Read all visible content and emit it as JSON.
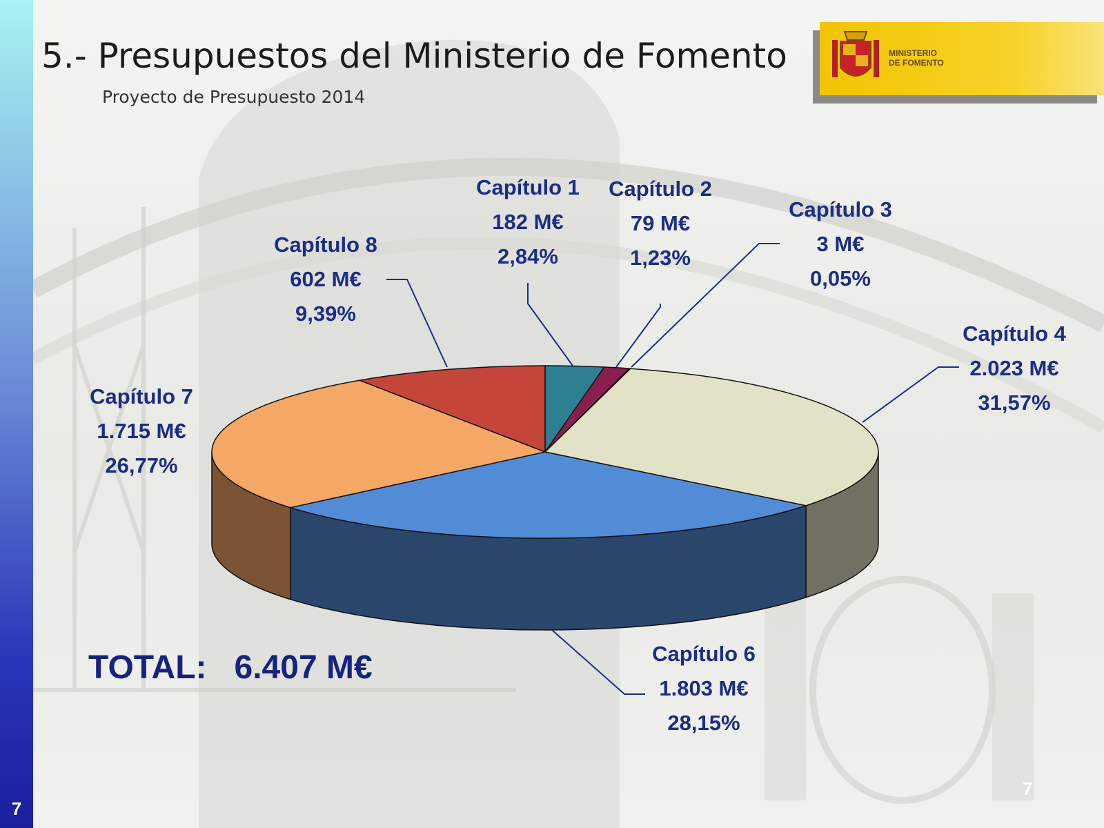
{
  "slide": {
    "title": "5.- Presupuestos del Ministerio de Fomento",
    "subtitle": "Proyecto de Presupuesto 2014",
    "logo_text": "MINISTERIO\nDE FOMENTO",
    "total": "TOTAL:   6.407 M€",
    "side_number": "7",
    "corner_number": "7"
  },
  "colors": {
    "text_accent": "#1a2e86",
    "strip_top": "#a8f2f2",
    "strip_bottom": "#1c1f9c"
  },
  "chart_data": {
    "type": "pie",
    "style": "3d",
    "unit": "M€",
    "start": "12 o'clock, clockwise",
    "slices": [
      {
        "label": "Capítulo 1",
        "value": 182,
        "value_text": "182 M€",
        "percent": "2,84%",
        "color": "#2e7f8f"
      },
      {
        "label": "Capítulo 2",
        "value": 79,
        "value_text": "79 M€",
        "percent": "1,23%",
        "color": "#8a1f4e"
      },
      {
        "label": "Capítulo 3",
        "value": 3,
        "value_text": "3 M€",
        "percent": "0,05%",
        "color": "#4a7a2a"
      },
      {
        "label": "Capítulo 4",
        "value": 2023,
        "value_text": "2.023 M€",
        "percent": "31,57%",
        "color": "#e2e2c6"
      },
      {
        "label": "Capítulo 6",
        "value": 1803,
        "value_text": "1.803 M€",
        "percent": "28,15%",
        "color": "#538cd6"
      },
      {
        "label": "Capítulo 7",
        "value": 1715,
        "value_text": "1.715 M€",
        "percent": "26,77%",
        "color": "#f5a866"
      },
      {
        "label": "Capítulo 8",
        "value": 602,
        "value_text": "602 M€",
        "percent": "9,39%",
        "color": "#c4463a"
      }
    ]
  }
}
